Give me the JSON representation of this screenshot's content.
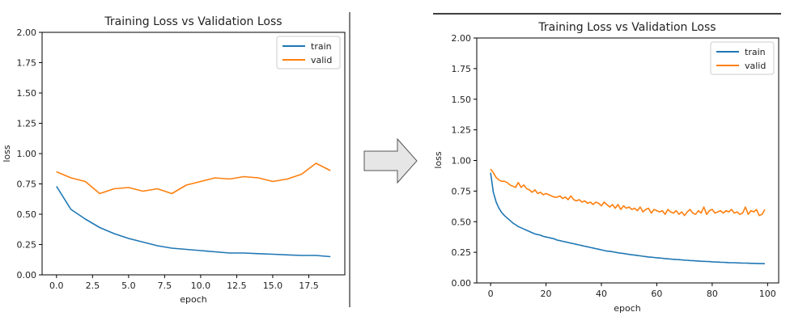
{
  "colors": {
    "train": "#1f77b4",
    "valid": "#ff7f0e",
    "arrow_fill": "#e6e6e6",
    "arrow_stroke": "#555555"
  },
  "chart_data": [
    {
      "type": "line",
      "title": "Training Loss vs Validation Loss",
      "xlabel": "epoch",
      "ylabel": "loss",
      "xlim": [
        -1,
        20
      ],
      "ylim": [
        0,
        2
      ],
      "xticks": [
        0,
        2.5,
        5,
        7.5,
        10,
        12.5,
        15,
        17.5
      ],
      "xtick_labels": [
        "0.0",
        "2.5",
        "5.0",
        "7.5",
        "10.0",
        "12.5",
        "15.0",
        "17.5"
      ],
      "yticks": [
        0,
        0.25,
        0.5,
        0.75,
        1.0,
        1.25,
        1.5,
        1.75,
        2.0
      ],
      "ytick_labels": [
        "0.00",
        "0.25",
        "0.50",
        "0.75",
        "1.00",
        "1.25",
        "1.50",
        "1.75",
        "2.00"
      ],
      "legend": "top-right",
      "grid": false,
      "x": [
        0,
        1,
        2,
        3,
        4,
        5,
        6,
        7,
        8,
        9,
        10,
        11,
        12,
        13,
        14,
        15,
        16,
        17,
        18,
        19
      ],
      "series": [
        {
          "name": "train",
          "values": [
            0.73,
            0.54,
            0.46,
            0.39,
            0.34,
            0.3,
            0.27,
            0.24,
            0.22,
            0.21,
            0.2,
            0.19,
            0.18,
            0.18,
            0.175,
            0.17,
            0.165,
            0.16,
            0.16,
            0.15
          ]
        },
        {
          "name": "valid",
          "values": [
            0.85,
            0.8,
            0.77,
            0.67,
            0.71,
            0.72,
            0.69,
            0.71,
            0.67,
            0.74,
            0.77,
            0.8,
            0.79,
            0.81,
            0.8,
            0.77,
            0.79,
            0.83,
            0.92,
            0.86
          ]
        }
      ]
    },
    {
      "type": "line",
      "title": "Training Loss vs Validation Loss",
      "xlabel": "epoch",
      "ylabel": "loss",
      "xlim": [
        -5,
        104
      ],
      "ylim": [
        0,
        2
      ],
      "xticks": [
        0,
        20,
        40,
        60,
        80,
        100
      ],
      "xtick_labels": [
        "0",
        "20",
        "40",
        "60",
        "80",
        "100"
      ],
      "yticks": [
        0,
        0.25,
        0.5,
        0.75,
        1.0,
        1.25,
        1.5,
        1.75,
        2.0
      ],
      "ytick_labels": [
        "0.00",
        "0.25",
        "0.50",
        "0.75",
        "1.00",
        "1.25",
        "1.50",
        "1.75",
        "2.00"
      ],
      "legend": "top-right",
      "grid": false,
      "x": [
        0,
        1,
        2,
        3,
        4,
        5,
        6,
        7,
        8,
        9,
        10,
        11,
        12,
        13,
        14,
        15,
        16,
        17,
        18,
        19,
        20,
        21,
        22,
        23,
        24,
        25,
        26,
        27,
        28,
        29,
        30,
        31,
        32,
        33,
        34,
        35,
        36,
        37,
        38,
        39,
        40,
        41,
        42,
        43,
        44,
        45,
        46,
        47,
        48,
        49,
        50,
        51,
        52,
        53,
        54,
        55,
        56,
        57,
        58,
        59,
        60,
        61,
        62,
        63,
        64,
        65,
        66,
        67,
        68,
        69,
        70,
        71,
        72,
        73,
        74,
        75,
        76,
        77,
        78,
        79,
        80,
        81,
        82,
        83,
        84,
        85,
        86,
        87,
        88,
        89,
        90,
        91,
        92,
        93,
        94,
        95,
        96,
        97,
        98,
        99
      ],
      "series": [
        {
          "name": "train",
          "values": [
            0.9,
            0.74,
            0.66,
            0.61,
            0.575,
            0.55,
            0.53,
            0.51,
            0.49,
            0.475,
            0.46,
            0.45,
            0.44,
            0.43,
            0.42,
            0.41,
            0.4,
            0.395,
            0.39,
            0.38,
            0.375,
            0.37,
            0.365,
            0.36,
            0.35,
            0.345,
            0.34,
            0.335,
            0.33,
            0.325,
            0.32,
            0.315,
            0.31,
            0.305,
            0.3,
            0.295,
            0.29,
            0.285,
            0.28,
            0.275,
            0.27,
            0.265,
            0.26,
            0.258,
            0.255,
            0.25,
            0.246,
            0.243,
            0.24,
            0.236,
            0.233,
            0.23,
            0.227,
            0.224,
            0.221,
            0.218,
            0.215,
            0.212,
            0.21,
            0.208,
            0.205,
            0.203,
            0.201,
            0.199,
            0.197,
            0.195,
            0.193,
            0.191,
            0.19,
            0.188,
            0.186,
            0.185,
            0.183,
            0.182,
            0.18,
            0.179,
            0.177,
            0.176,
            0.175,
            0.174,
            0.172,
            0.171,
            0.17,
            0.169,
            0.168,
            0.167,
            0.166,
            0.165,
            0.165,
            0.164,
            0.163,
            0.162,
            0.162,
            0.161,
            0.16,
            0.16,
            0.159,
            0.158,
            0.158,
            0.157
          ]
        },
        {
          "name": "valid",
          "values": [
            0.93,
            0.9,
            0.86,
            0.84,
            0.83,
            0.83,
            0.82,
            0.8,
            0.79,
            0.78,
            0.82,
            0.78,
            0.8,
            0.77,
            0.76,
            0.74,
            0.76,
            0.73,
            0.74,
            0.72,
            0.73,
            0.72,
            0.71,
            0.7,
            0.7,
            0.71,
            0.69,
            0.7,
            0.68,
            0.71,
            0.68,
            0.67,
            0.68,
            0.66,
            0.67,
            0.65,
            0.66,
            0.64,
            0.66,
            0.65,
            0.63,
            0.66,
            0.64,
            0.62,
            0.64,
            0.61,
            0.64,
            0.6,
            0.63,
            0.61,
            0.62,
            0.6,
            0.61,
            0.59,
            0.62,
            0.58,
            0.6,
            0.61,
            0.57,
            0.6,
            0.59,
            0.58,
            0.59,
            0.56,
            0.6,
            0.58,
            0.57,
            0.59,
            0.56,
            0.58,
            0.55,
            0.58,
            0.6,
            0.57,
            0.56,
            0.59,
            0.57,
            0.62,
            0.56,
            0.59,
            0.6,
            0.57,
            0.58,
            0.59,
            0.57,
            0.59,
            0.58,
            0.6,
            0.57,
            0.58,
            0.56,
            0.57,
            0.62,
            0.56,
            0.59,
            0.58,
            0.6,
            0.55,
            0.56,
            0.6
          ]
        }
      ]
    }
  ]
}
